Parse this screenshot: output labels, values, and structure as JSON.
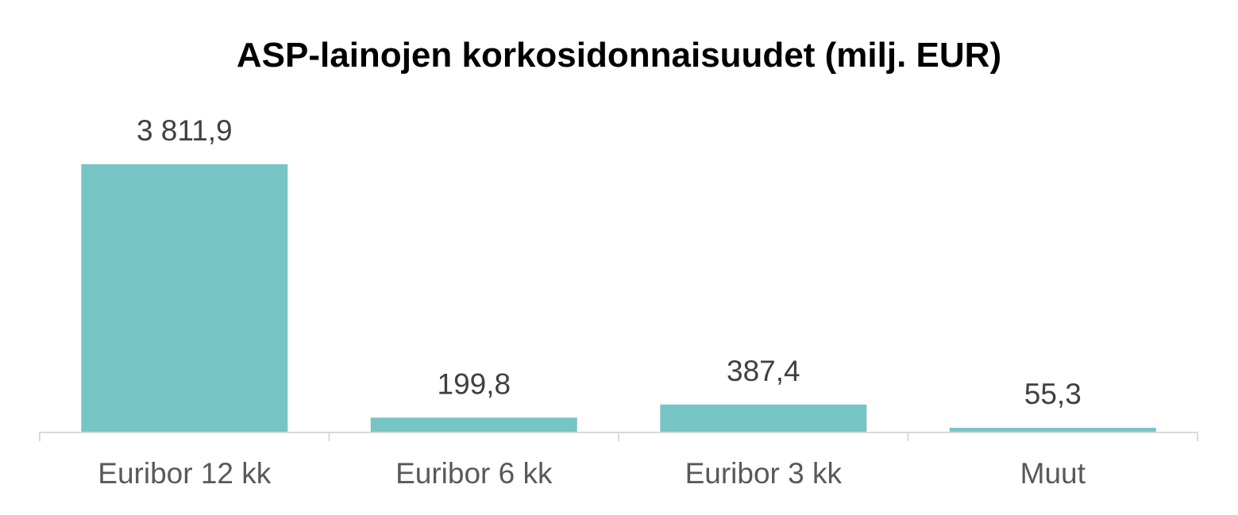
{
  "chart_data": {
    "type": "bar",
    "title": "ASP-lainojen korkosidonnaisuudet (milj. EUR)",
    "xlabel": "",
    "ylabel": "",
    "categories": [
      "Euribor 12 kk",
      "Euribor 6 kk",
      "Euribor 3 kk",
      "Muut"
    ],
    "values": [
      3811.9,
      199.8,
      387.4,
      55.3
    ],
    "data_labels": [
      "3 811,9",
      "199,8",
      "387,4",
      "55,3"
    ],
    "ylim": [
      0,
      3811.9
    ],
    "grid": false,
    "legend": "none",
    "colors": {
      "bar": "#77C4C4",
      "axis": "#D9D9D9",
      "title": "#000000",
      "data_label": "#404040",
      "tick_label": "#595959"
    }
  }
}
